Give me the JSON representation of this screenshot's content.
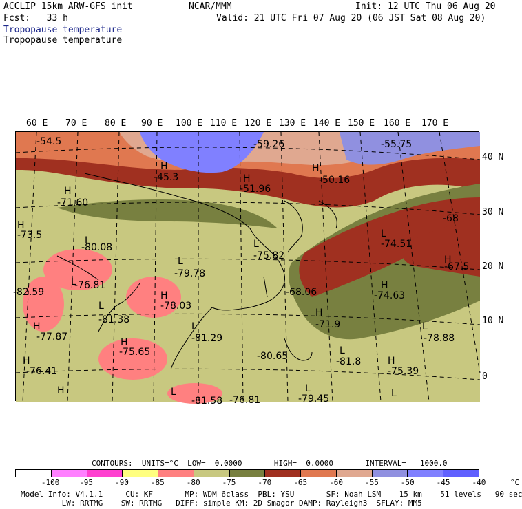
{
  "header": {
    "line1_left": "ACCLIP 15km ARW-GFS init",
    "line1_mid": "NCAR/MMM",
    "line1_right": "Init: 12 UTC Thu 06 Aug 20",
    "line2_left": "Fcst:   33 h",
    "line2_right": "Valid: 21 UTC Fri 07 Aug 20 (06 JST Sat 08 Aug 20)",
    "field_blue": "Tropopause temperature",
    "field_black": "Tropopause temperature"
  },
  "lon_labels": [
    "60 E",
    "70 E",
    "80 E",
    "90 E",
    "100 E",
    "110 E",
    "120 E",
    "130 E",
    "140 E",
    "150 E",
    "160 E",
    "170 E"
  ],
  "lat_labels": [
    "40 N",
    "30 N",
    "20 N",
    "10 N",
    "0"
  ],
  "map_labels": [
    {
      "t": "-54.5"
    },
    {
      "t": "-59.26"
    },
    {
      "t": "-55.75"
    },
    {
      "t": "H"
    },
    {
      "t": "-45.3"
    },
    {
      "t": "H"
    },
    {
      "t": "-51.96"
    },
    {
      "t": "H"
    },
    {
      "t": "-50.16"
    },
    {
      "t": "H"
    },
    {
      "t": "-71.60"
    },
    {
      "t": "H"
    },
    {
      "t": "-73.5"
    },
    {
      "t": "L"
    },
    {
      "t": "-80.08"
    },
    {
      "t": "L"
    },
    {
      "t": "-75.82"
    },
    {
      "t": "L"
    },
    {
      "t": "-74.51"
    },
    {
      "t": "-68"
    },
    {
      "t": "L"
    },
    {
      "t": "-79.78"
    },
    {
      "t": "H"
    },
    {
      "t": "-67.5"
    },
    {
      "t": "L"
    },
    {
      "t": "-76.81"
    },
    {
      "t": "-82.59"
    },
    {
      "t": "H"
    },
    {
      "t": "-78.03"
    },
    {
      "t": "-68.06"
    },
    {
      "t": "H"
    },
    {
      "t": "-74.63"
    },
    {
      "t": "L"
    },
    {
      "t": "-81.38"
    },
    {
      "t": "H"
    },
    {
      "t": "-71.9"
    },
    {
      "t": "H"
    },
    {
      "t": "-77.87"
    },
    {
      "t": "L"
    },
    {
      "t": "-81.29"
    },
    {
      "t": "L"
    },
    {
      "t": "-78.88"
    },
    {
      "t": "H"
    },
    {
      "t": "-75.65"
    },
    {
      "t": "-80.65"
    },
    {
      "t": "L"
    },
    {
      "t": "-81.8"
    },
    {
      "t": "H"
    },
    {
      "t": "-75.39"
    },
    {
      "t": "H"
    },
    {
      "t": "-76.41"
    },
    {
      "t": "H"
    },
    {
      "t": "L"
    },
    {
      "t": "-81.58"
    },
    {
      "t": "-76.81"
    },
    {
      "t": "L"
    },
    {
      "t": "-79.45"
    },
    {
      "t": "L"
    }
  ],
  "contours_line": "CONTOURS:  UNITS=°C  LOW=  0.0000       HIGH=  0.0000       INTERVAL=   1000.0",
  "colorbar": {
    "colors": [
      "#ffffff",
      "#ff80ff",
      "#ff40d0",
      "#ffff80",
      "#ff8080",
      "#c8c880",
      "#788040",
      "#a03020",
      "#e07850",
      "#e0a890",
      "#9090e0",
      "#8080ff",
      "#6060ff"
    ],
    "ticks": [
      "-100",
      "-95",
      "-90",
      "-85",
      "-80",
      "-75",
      "-70",
      "-65",
      "-60",
      "-55",
      "-50",
      "-45",
      "-40",
      "°C"
    ]
  },
  "footer": {
    "line1": "Model Info: V4.1.1     CU: KF       MP: WDM 6class  PBL: YSU       SF: Noah LSM    15 km    51 levels   90 sec",
    "line2": "         LW: RRTMG    SW: RRTMG   DIFF: simple KM: 2D Smagor DAMP: Rayleigh3  SFLAY: MM5"
  }
}
